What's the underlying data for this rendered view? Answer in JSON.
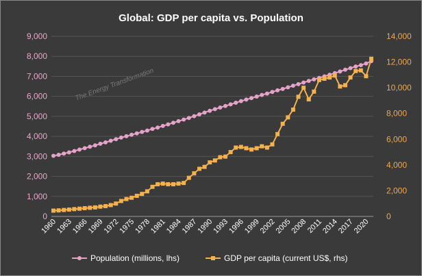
{
  "chart_data": {
    "type": "line",
    "title": "Global: GDP per capita vs. Population",
    "watermark": "The Energy Transformation",
    "x": [
      1960,
      1961,
      1962,
      1963,
      1964,
      1965,
      1966,
      1967,
      1968,
      1969,
      1970,
      1971,
      1972,
      1973,
      1974,
      1975,
      1976,
      1977,
      1978,
      1979,
      1980,
      1981,
      1982,
      1983,
      1984,
      1985,
      1986,
      1987,
      1988,
      1989,
      1990,
      1991,
      1992,
      1993,
      1994,
      1995,
      1996,
      1997,
      1998,
      1999,
      2000,
      2001,
      2002,
      2003,
      2004,
      2005,
      2006,
      2007,
      2008,
      2009,
      2010,
      2011,
      2012,
      2013,
      2014,
      2015,
      2016,
      2017,
      2018,
      2019,
      2020,
      2021
    ],
    "x_tick_labels": [
      "1960",
      "1963",
      "1966",
      "1969",
      "1972",
      "1975",
      "1978",
      "1981",
      "1984",
      "1987",
      "1990",
      "1993",
      "1996",
      "1999",
      "2002",
      "2005",
      "2008",
      "2011",
      "2014",
      "2017",
      "2020"
    ],
    "left_axis": {
      "ylim": [
        0,
        9000
      ],
      "ticks": [
        "0",
        "1,000",
        "2,000",
        "3,000",
        "4,000",
        "5,000",
        "6,000",
        "7,000",
        "8,000",
        "9,000"
      ]
    },
    "right_axis": {
      "ylim": [
        0,
        14000
      ],
      "ticks": [
        "0",
        "2,000",
        "4,000",
        "6,000",
        "8,000",
        "10,000",
        "12,000",
        "14,000"
      ]
    },
    "series": [
      {
        "name": "Population (millions, lhs)",
        "axis": "left",
        "color": "#e6a3c9",
        "marker": "circle",
        "values": [
          3030,
          3080,
          3140,
          3200,
          3270,
          3340,
          3410,
          3480,
          3550,
          3630,
          3700,
          3780,
          3860,
          3940,
          4010,
          4080,
          4150,
          4220,
          4290,
          4370,
          4440,
          4520,
          4600,
          4680,
          4760,
          4840,
          4920,
          5010,
          5100,
          5190,
          5280,
          5360,
          5440,
          5520,
          5600,
          5680,
          5760,
          5840,
          5910,
          5990,
          6070,
          6140,
          6220,
          6300,
          6370,
          6450,
          6530,
          6610,
          6690,
          6770,
          6850,
          6920,
          7000,
          7080,
          7160,
          7240,
          7330,
          7410,
          7490,
          7560,
          7640,
          7760
        ]
      },
      {
        "name": "GDP per capita (current US$, rhs)",
        "axis": "right",
        "color": "#f5b14c",
        "marker": "square",
        "values": [
          450,
          470,
          500,
          530,
          570,
          600,
          640,
          670,
          700,
          760,
          800,
          880,
          1000,
          1200,
          1350,
          1450,
          1600,
          1750,
          1950,
          2300,
          2500,
          2550,
          2500,
          2500,
          2550,
          2600,
          3000,
          3350,
          3700,
          3850,
          4200,
          4350,
          4600,
          4650,
          5000,
          5350,
          5400,
          5300,
          5200,
          5300,
          5450,
          5350,
          5600,
          6400,
          7200,
          7700,
          8300,
          9300,
          10000,
          9100,
          9700,
          10600,
          10700,
          10800,
          10950,
          10100,
          10200,
          10800,
          11300,
          11350,
          10900,
          12250
        ]
      }
    ],
    "legend": "bottom"
  }
}
